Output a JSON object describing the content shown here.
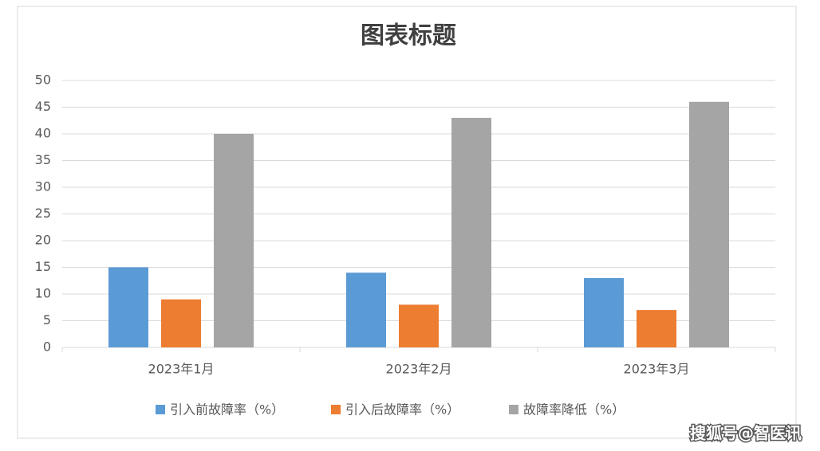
{
  "chart_data": {
    "type": "bar",
    "title": "图表标题",
    "categories": [
      "2023年1月",
      "2023年2月",
      "2023年3月"
    ],
    "series": [
      {
        "name": "引入前故障率（%）",
        "color": "#5b9bd5",
        "values": [
          15,
          14,
          13
        ]
      },
      {
        "name": "引入后故障率（%）",
        "color": "#ed7d31",
        "values": [
          9,
          8,
          7
        ]
      },
      {
        "name": "故障率降低（%）",
        "color": "#a5a5a5",
        "values": [
          40,
          43,
          46
        ]
      }
    ],
    "ylim": [
      0,
      50
    ],
    "yticks": [
      0,
      5,
      10,
      15,
      20,
      25,
      30,
      35,
      40,
      45,
      50
    ],
    "grid": true,
    "legend": "bottom"
  },
  "watermark": "搜狐号@智医讯"
}
